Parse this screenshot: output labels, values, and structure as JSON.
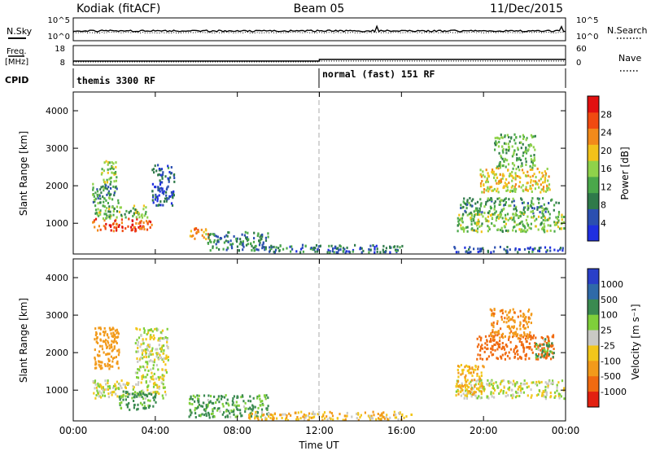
{
  "header": {
    "station": "Kodiak (fitACF)",
    "beam": "Beam 05",
    "date": "11/Dec/2015"
  },
  "panel_labels": {
    "nsky": "N.Sky",
    "freq_top": "Freq.",
    "freq_unit": "[MHz]",
    "cpid": "CPID",
    "nsearch": "N.Search",
    "nave": "Nave",
    "nsky_ticks": [
      "10^5",
      "10^0"
    ],
    "nsearch_ticks": [
      "10^5",
      "10^0"
    ],
    "freq_ticks": [
      "18",
      "8"
    ],
    "nave_ticks": [
      "60",
      "0"
    ]
  },
  "cpid_modes": [
    {
      "label": "themis 3300 RF",
      "start_h": 0,
      "end_h": 12
    },
    {
      "label": "normal (fast) 151 RF",
      "start_h": 12,
      "end_h": 24
    }
  ],
  "colors": {
    "power_scale": [
      "#1f2fe0",
      "#2b4fb0",
      "#2f7a4a",
      "#4aa84a",
      "#8fd24a",
      "#f2c21a",
      "#f28a1a",
      "#f04a10",
      "#e21010"
    ],
    "velocity_scale": [
      "#2a3fc8",
      "#2f6aa8",
      "#3a8a50",
      "#7fcf3a",
      "#c9c9c4",
      "#f2c61a",
      "#f29a1a",
      "#f06a10",
      "#e22010"
    ],
    "ground_scatter": "#c9c9c4",
    "axis": "#000000"
  },
  "chart_data": [
    {
      "type": "heatmap",
      "name": "power",
      "xlabel": "",
      "ylabel": "Slant Range [km]",
      "xlim": [
        0,
        24
      ],
      "ylim": [
        180,
        4500
      ],
      "yticks": [
        1000,
        2000,
        3000,
        4000
      ],
      "ytick_labels": [
        "1000",
        "2000",
        "3000",
        "4000"
      ],
      "colorbar": {
        "label": "Power [dB]",
        "range": [
          0,
          32
        ],
        "ticks": [
          4,
          8,
          12,
          16,
          20,
          24,
          28
        ],
        "tick_labels": [
          "4",
          "8",
          "12",
          "16",
          "20",
          "24",
          "28"
        ]
      },
      "scatter_regions": [
        {
          "t0": 0.9,
          "t1": 3.8,
          "r0": 820,
          "r1": 1150,
          "value": 27
        },
        {
          "t0": 1.0,
          "t1": 3.6,
          "r0": 1150,
          "r1": 1500,
          "value": 14
        },
        {
          "t0": 0.9,
          "t1": 2.2,
          "r0": 1550,
          "r1": 2100,
          "value": 11
        },
        {
          "t0": 1.3,
          "t1": 2.1,
          "r0": 2100,
          "r1": 2700,
          "value": 16
        },
        {
          "t0": 3.8,
          "t1": 4.9,
          "r0": 1500,
          "r1": 2600,
          "value": 6
        },
        {
          "t0": 5.6,
          "t1": 6.6,
          "r0": 600,
          "r1": 900,
          "value": 22
        },
        {
          "t0": 6.5,
          "t1": 9.5,
          "r0": 300,
          "r1": 800,
          "value": 9
        },
        {
          "t0": 9.5,
          "t1": 16.0,
          "r0": 250,
          "r1": 450,
          "value": 7
        },
        {
          "t0": 18.7,
          "t1": 23.9,
          "r0": 800,
          "r1": 1300,
          "value": 15
        },
        {
          "t0": 18.8,
          "t1": 23.7,
          "r0": 1300,
          "r1": 1700,
          "value": 11
        },
        {
          "t0": 19.8,
          "t1": 23.2,
          "r0": 1850,
          "r1": 2500,
          "value": 19
        },
        {
          "t0": 20.5,
          "t1": 22.5,
          "r0": 2500,
          "r1": 3400,
          "value": 13
        },
        {
          "t0": 18.5,
          "t1": 23.9,
          "r0": 250,
          "r1": 400,
          "value": 6
        }
      ]
    },
    {
      "type": "heatmap",
      "name": "velocity",
      "xlabel": "Time UT",
      "ylabel": "Slant Range [km]",
      "xlim": [
        0,
        24
      ],
      "ylim": [
        180,
        4500
      ],
      "xticks": [
        0,
        4,
        8,
        12,
        16,
        20,
        24
      ],
      "xtick_labels": [
        "00:00",
        "04:00",
        "08:00",
        "12:00",
        "16:00",
        "20:00",
        "00:00"
      ],
      "yticks": [
        1000,
        2000,
        3000,
        4000
      ],
      "ytick_labels": [
        "1000",
        "2000",
        "3000",
        "4000"
      ],
      "colorbar": {
        "label": "Velocity [m s⁻¹]",
        "ticks": [
          1000,
          500,
          100,
          25,
          -25,
          -100,
          -500,
          -1000
        ],
        "tick_labels": [
          "1000",
          "500",
          "100",
          "25",
          "-25",
          "-100",
          "-500",
          "-1000"
        ]
      },
      "scatter_regions": [
        {
          "t0": 0.9,
          "t1": 4.5,
          "r0": 800,
          "r1": 1300,
          "value": 0
        },
        {
          "t0": 3.0,
          "t1": 4.6,
          "r0": 1300,
          "r1": 2700,
          "value": 0
        },
        {
          "t0": 1.0,
          "t1": 2.2,
          "r0": 1600,
          "r1": 2700,
          "value": -300
        },
        {
          "t0": 2.2,
          "t1": 4.0,
          "r0": 500,
          "r1": 1000,
          "value": 150
        },
        {
          "t0": 5.6,
          "t1": 9.5,
          "r0": 300,
          "r1": 900,
          "value": 120
        },
        {
          "t0": 8.5,
          "t1": 16.5,
          "r0": 220,
          "r1": 450,
          "value": -80
        },
        {
          "t0": 18.6,
          "t1": 23.9,
          "r0": 800,
          "r1": 1300,
          "value": 0
        },
        {
          "t0": 18.7,
          "t1": 20.0,
          "r0": 900,
          "r1": 1700,
          "value": -120
        },
        {
          "t0": 19.6,
          "t1": 23.4,
          "r0": 1850,
          "r1": 2500,
          "value": -600
        },
        {
          "t0": 20.3,
          "t1": 22.3,
          "r0": 2400,
          "r1": 3200,
          "value": -450
        },
        {
          "t0": 22.5,
          "t1": 23.4,
          "r0": 1900,
          "r1": 2400,
          "value": 120
        }
      ]
    }
  ]
}
